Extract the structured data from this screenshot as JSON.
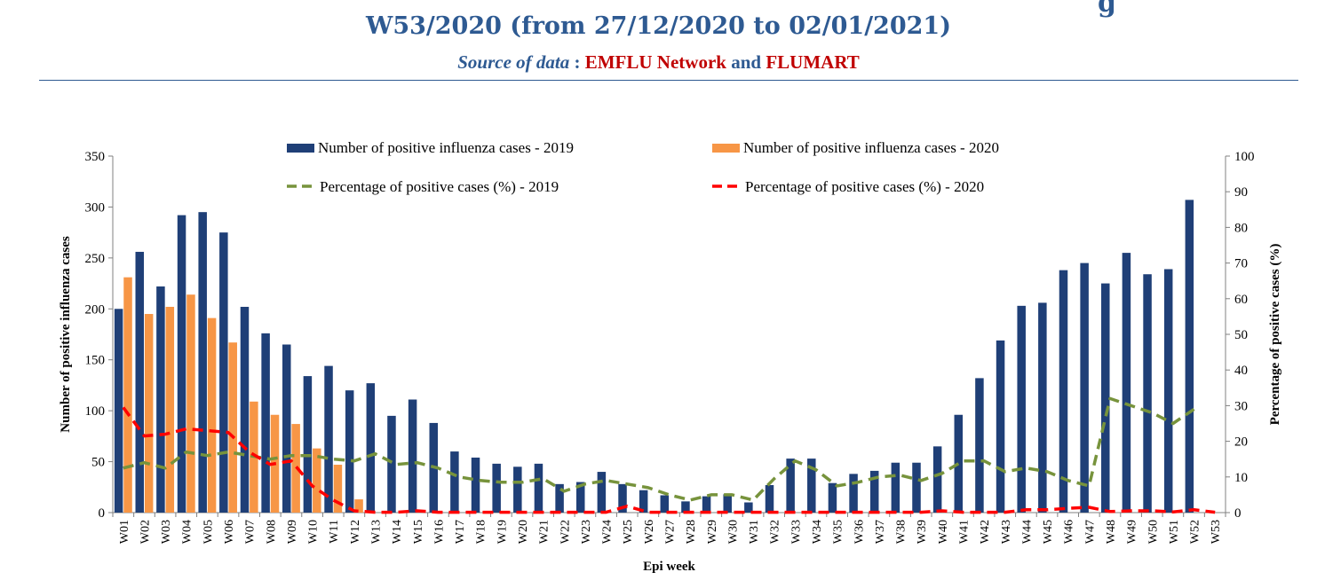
{
  "header": {
    "title": "W53/2020 (from 27/12/2020 to 02/01/2021)",
    "cut_glyph": "g",
    "source_label": "Source of data",
    "source_sep": " : ",
    "source_org1": "EMFLU Network",
    "source_and": " and ",
    "source_org2": "FLUMART"
  },
  "chart_data": {
    "type": "bar",
    "categories": [
      "W01",
      "W02",
      "W03",
      "W04",
      "W05",
      "W06",
      "W07",
      "W08",
      "W09",
      "W10",
      "W11",
      "W12",
      "W13",
      "W14",
      "W15",
      "W16",
      "W17",
      "W18",
      "W19",
      "W20",
      "W21",
      "W22",
      "W23",
      "W24",
      "W25",
      "W26",
      "W27",
      "W28",
      "W29",
      "W30",
      "W31",
      "W32",
      "W33",
      "W34",
      "W35",
      "W36",
      "W37",
      "W38",
      "W39",
      "W40",
      "W41",
      "W42",
      "W43",
      "W44",
      "W45",
      "W46",
      "W47",
      "W48",
      "W49",
      "W50",
      "W51",
      "W52",
      "W53"
    ],
    "xlabel": "Epi week",
    "ylabel": "Number of positive influenza cases",
    "y2label": "Percentage of positive cases (%)",
    "ylim": [
      0,
      350
    ],
    "y2lim": [
      0,
      100
    ],
    "yticks": [
      0,
      50,
      100,
      150,
      200,
      250,
      300,
      350
    ],
    "y2ticks": [
      0,
      10,
      20,
      30,
      40,
      50,
      60,
      70,
      80,
      90,
      100
    ],
    "colors": {
      "bar2019": "#1f3f77",
      "bar2020": "#f79646",
      "line2019": "#77933c",
      "line2020": "#ff0000"
    },
    "series": [
      {
        "name": "Number of positive influenza cases  - 2019",
        "kind": "bar",
        "axis": "left",
        "values": [
          200,
          256,
          222,
          292,
          295,
          275,
          202,
          176,
          165,
          134,
          144,
          120,
          127,
          95,
          111,
          88,
          60,
          54,
          48,
          45,
          48,
          28,
          30,
          40,
          28,
          22,
          17,
          11,
          16,
          18,
          10,
          27,
          53,
          53,
          29,
          38,
          41,
          49,
          49,
          65,
          96,
          132,
          169,
          203,
          206,
          238,
          245,
          225,
          255,
          234,
          239,
          307,
          null
        ]
      },
      {
        "name": "Number of positive influenza cases  - 2020",
        "kind": "bar",
        "axis": "left",
        "values": [
          231,
          195,
          202,
          214,
          191,
          167,
          109,
          96,
          87,
          63,
          47,
          13,
          null,
          null,
          null,
          null,
          null,
          null,
          null,
          null,
          null,
          null,
          null,
          null,
          null,
          null,
          null,
          null,
          null,
          null,
          null,
          null,
          null,
          null,
          null,
          null,
          null,
          null,
          null,
          null,
          null,
          null,
          null,
          null,
          null,
          null,
          null,
          null,
          null,
          null,
          null,
          null,
          null
        ]
      },
      {
        "name": "Percentage of positive cases (%)  - 2019",
        "kind": "line",
        "axis": "right",
        "dash": "green",
        "values": [
          12.5,
          14,
          12.5,
          17,
          16,
          17,
          16,
          15,
          16,
          16,
          15,
          14.5,
          16.5,
          13.5,
          14,
          12.5,
          10,
          9,
          8.5,
          8.5,
          9.5,
          6,
          8,
          9,
          8,
          7,
          5,
          3.5,
          5,
          5,
          3.5,
          9.5,
          14.5,
          12,
          7.5,
          8.5,
          10,
          10.5,
          9,
          11,
          14.5,
          14.5,
          11.5,
          12.5,
          11.5,
          9,
          7.5,
          32,
          30,
          28,
          25,
          29,
          null
        ]
      },
      {
        "name": "Percentage of positive cases (%)  - 2020",
        "kind": "line",
        "axis": "right",
        "dash": "red",
        "values": [
          29.5,
          21.5,
          22,
          23.5,
          23,
          22.5,
          17,
          13.5,
          14.5,
          7.5,
          3.5,
          0.5,
          0.1,
          0.1,
          0.5,
          0.1,
          0.1,
          0.1,
          0.1,
          0.1,
          0.1,
          0.1,
          0.1,
          0.1,
          1.8,
          0.1,
          0.1,
          0.1,
          0.1,
          0.1,
          0.1,
          0.1,
          0.1,
          0.1,
          0.1,
          0.1,
          0.1,
          0.1,
          0.1,
          0.5,
          0.1,
          0.1,
          0.1,
          0.8,
          0.8,
          1.2,
          1.5,
          0.3,
          0.5,
          0.5,
          0.2,
          0.8,
          0.1
        ]
      }
    ]
  }
}
